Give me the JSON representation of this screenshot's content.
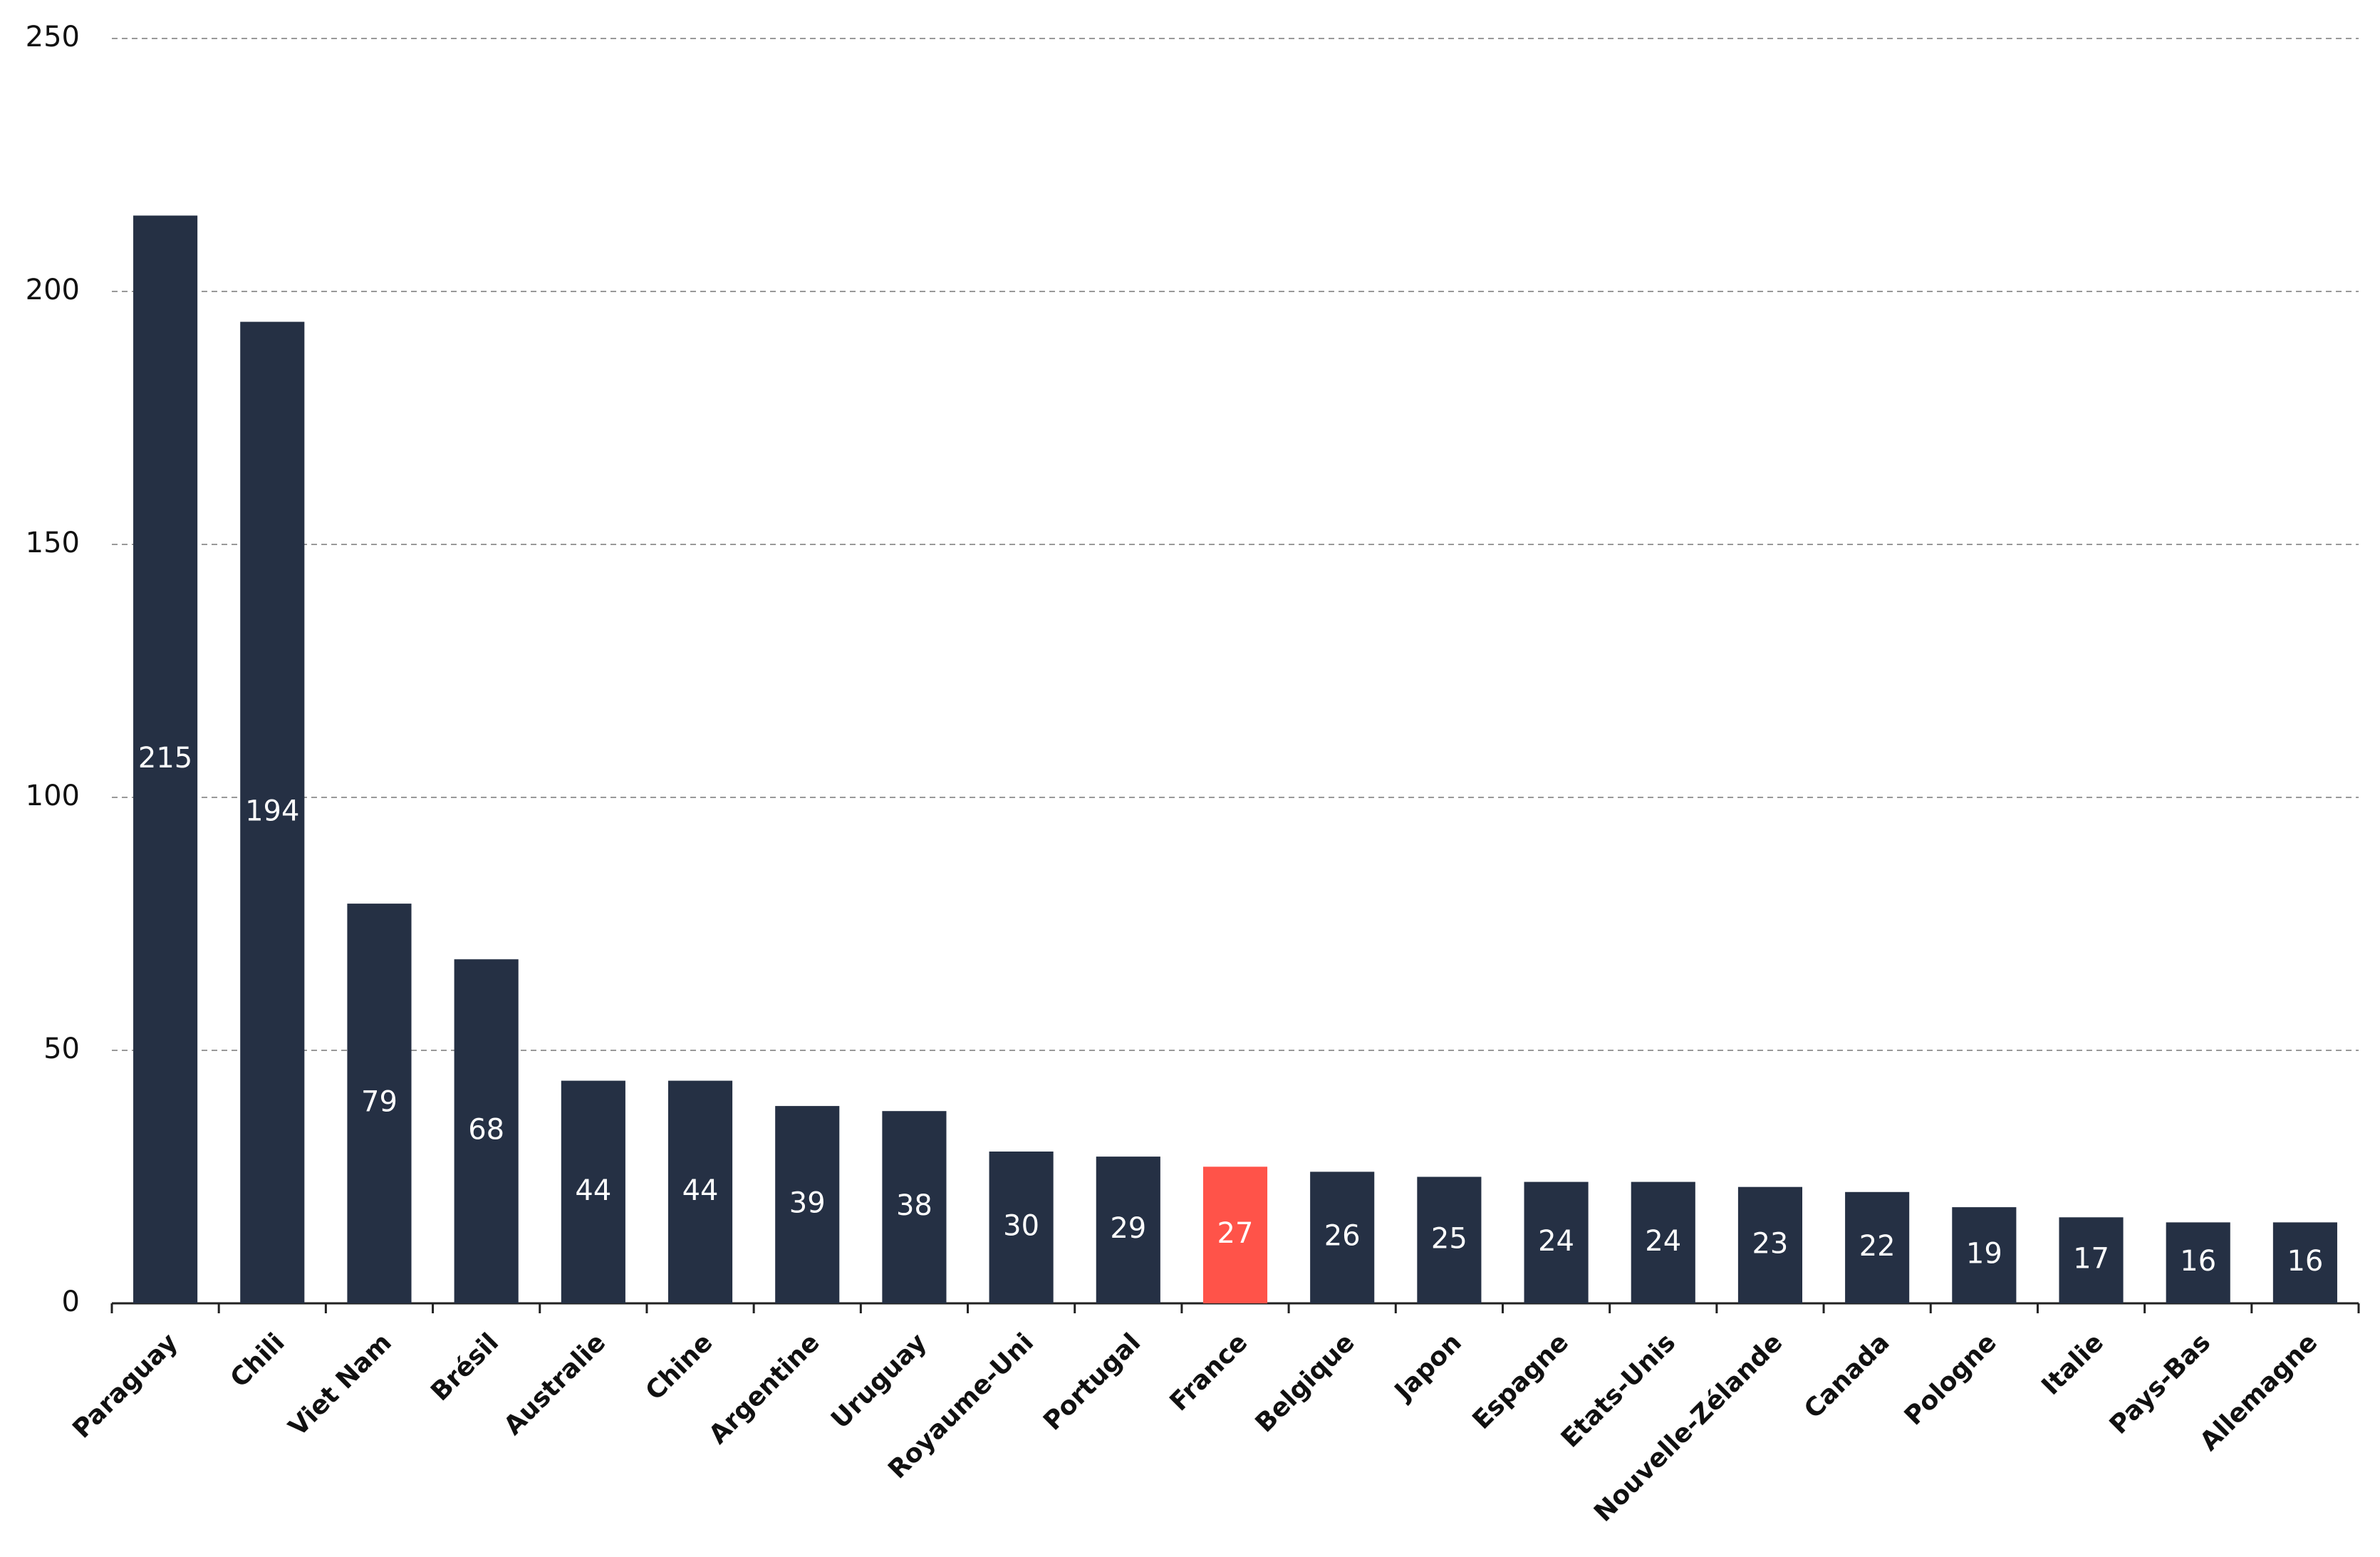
{
  "chart_data": {
    "type": "bar",
    "categories": [
      "Paraguay",
      "Chili",
      "Viet Nam",
      "Brésil",
      "Australie",
      "Chine",
      "Argentine",
      "Uruguay",
      "Royaume-Uni",
      "Portugal",
      "France",
      "Belgique",
      "Japon",
      "Espagne",
      "Etats-Unis",
      "Nouvelle-Zélande",
      "Canada",
      "Pologne",
      "Italie",
      "Pays-Bas",
      "Allemagne"
    ],
    "values": [
      215,
      194,
      79,
      68,
      44,
      44,
      39,
      38,
      30,
      29,
      27,
      26,
      25,
      24,
      24,
      23,
      22,
      19,
      17,
      16,
      16
    ],
    "colors": [
      "#253044",
      "#253044",
      "#253044",
      "#253044",
      "#253044",
      "#253044",
      "#253044",
      "#253044",
      "#253044",
      "#253044",
      "#ff5349",
      "#253044",
      "#253044",
      "#253044",
      "#253044",
      "#253044",
      "#253044",
      "#253044",
      "#253044",
      "#253044",
      "#253044"
    ],
    "ylim": [
      0,
      250
    ],
    "yticks": [
      0,
      50,
      100,
      150,
      200,
      250
    ],
    "grid": true
  }
}
